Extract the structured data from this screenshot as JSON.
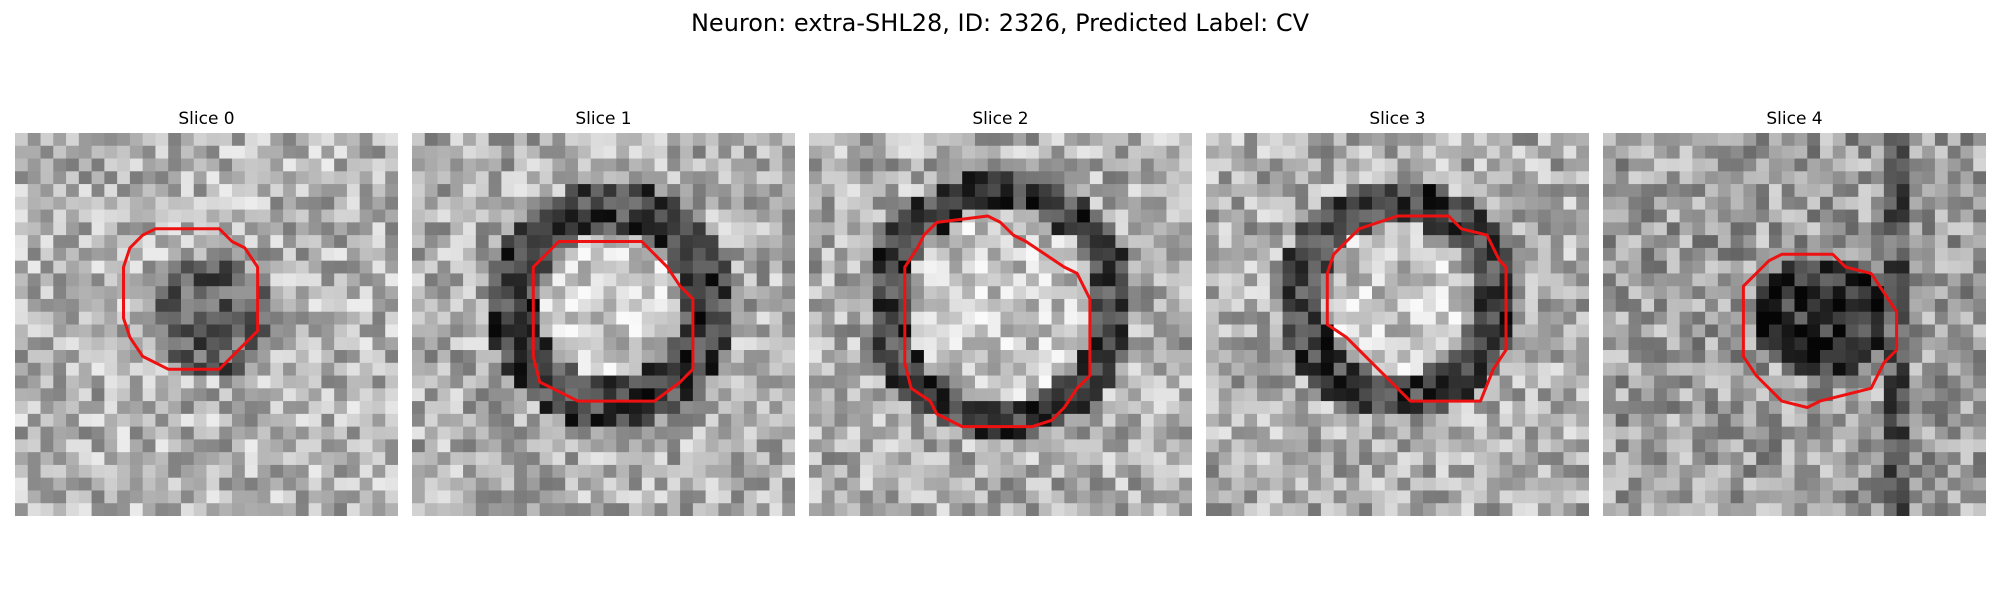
{
  "figure": {
    "title": "Neuron: extra-SHL28, ID: 2326, Predicted Label: CV"
  },
  "panels": [
    {
      "title": "Slice 0",
      "pattern": "blob",
      "contour": "octagon-small"
    },
    {
      "title": "Slice 1",
      "pattern": "ring-bright-center",
      "contour": "octagon"
    },
    {
      "title": "Slice 2",
      "pattern": "ring-bright-center",
      "contour": "octagon-large"
    },
    {
      "title": "Slice 3",
      "pattern": "ring-bright-center",
      "contour": "octagon-cut"
    },
    {
      "title": "Slice 4",
      "pattern": "dark-blob",
      "contour": "octagon"
    }
  ],
  "colors": {
    "contour": "#ee1111",
    "background": "#ffffff"
  },
  "image": {
    "grid_size": 30,
    "colormap": "gray"
  }
}
